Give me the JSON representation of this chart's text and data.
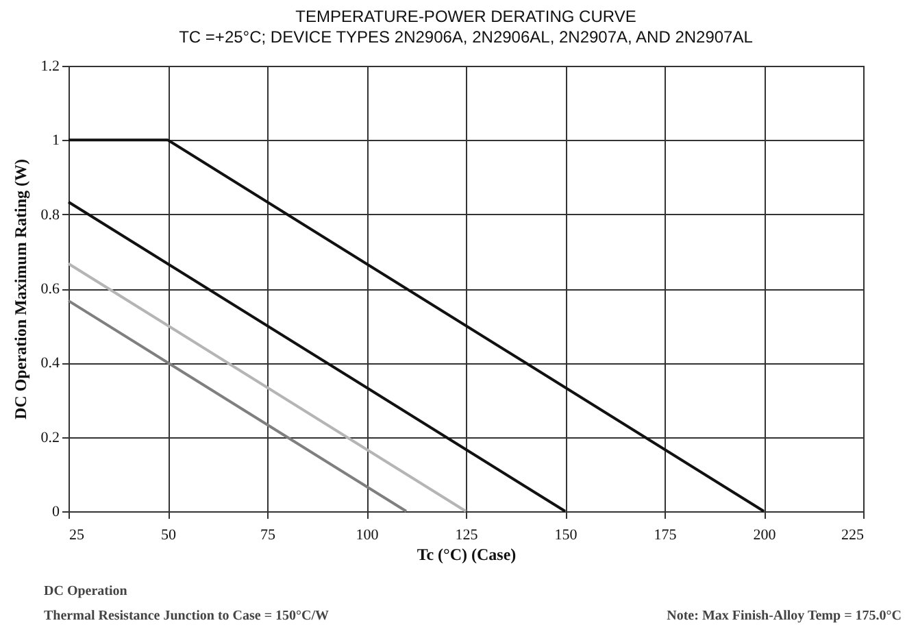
{
  "chart_data": {
    "type": "line",
    "title": "TEMPERATURE-POWER DERATING CURVE",
    "subtitle": "TC =+25°C; DEVICE TYPES 2N2906A, 2N2906AL, 2N2907A, AND 2N2907AL",
    "xlabel": "Tc (°C)  (Case)",
    "ylabel": "DC Operation Maximum  Rating (W)",
    "series": [
      {
        "color": "#111111",
        "x": [
          25,
          50,
          200
        ],
        "values": [
          1,
          1,
          0
        ]
      },
      {
        "color": "#111111",
        "x": [
          25,
          150
        ],
        "values": [
          0.833,
          0
        ]
      },
      {
        "color": "#b5b5b5",
        "x": [
          25,
          125
        ],
        "values": [
          0.667,
          0
        ]
      },
      {
        "color": "#7f7f7f",
        "x": [
          25,
          110
        ],
        "values": [
          0.567,
          0
        ]
      }
    ],
    "xlim": [
      25,
      225
    ],
    "xticks": [
      25,
      50,
      75,
      100,
      125,
      150,
      175,
      200,
      225
    ],
    "ylim": [
      0,
      1.2
    ],
    "yticks": [
      0,
      0.2,
      0.4,
      0.6,
      0.8,
      1,
      1.2
    ],
    "grid": true,
    "legend": false,
    "marker": "none",
    "line_style": "solid",
    "annotations": [
      "DC Operation",
      "Thermal Resistance Junction to Case = 150°C/W",
      "Note: Max Finish-Alloy Temp = 175.0°C"
    ]
  }
}
